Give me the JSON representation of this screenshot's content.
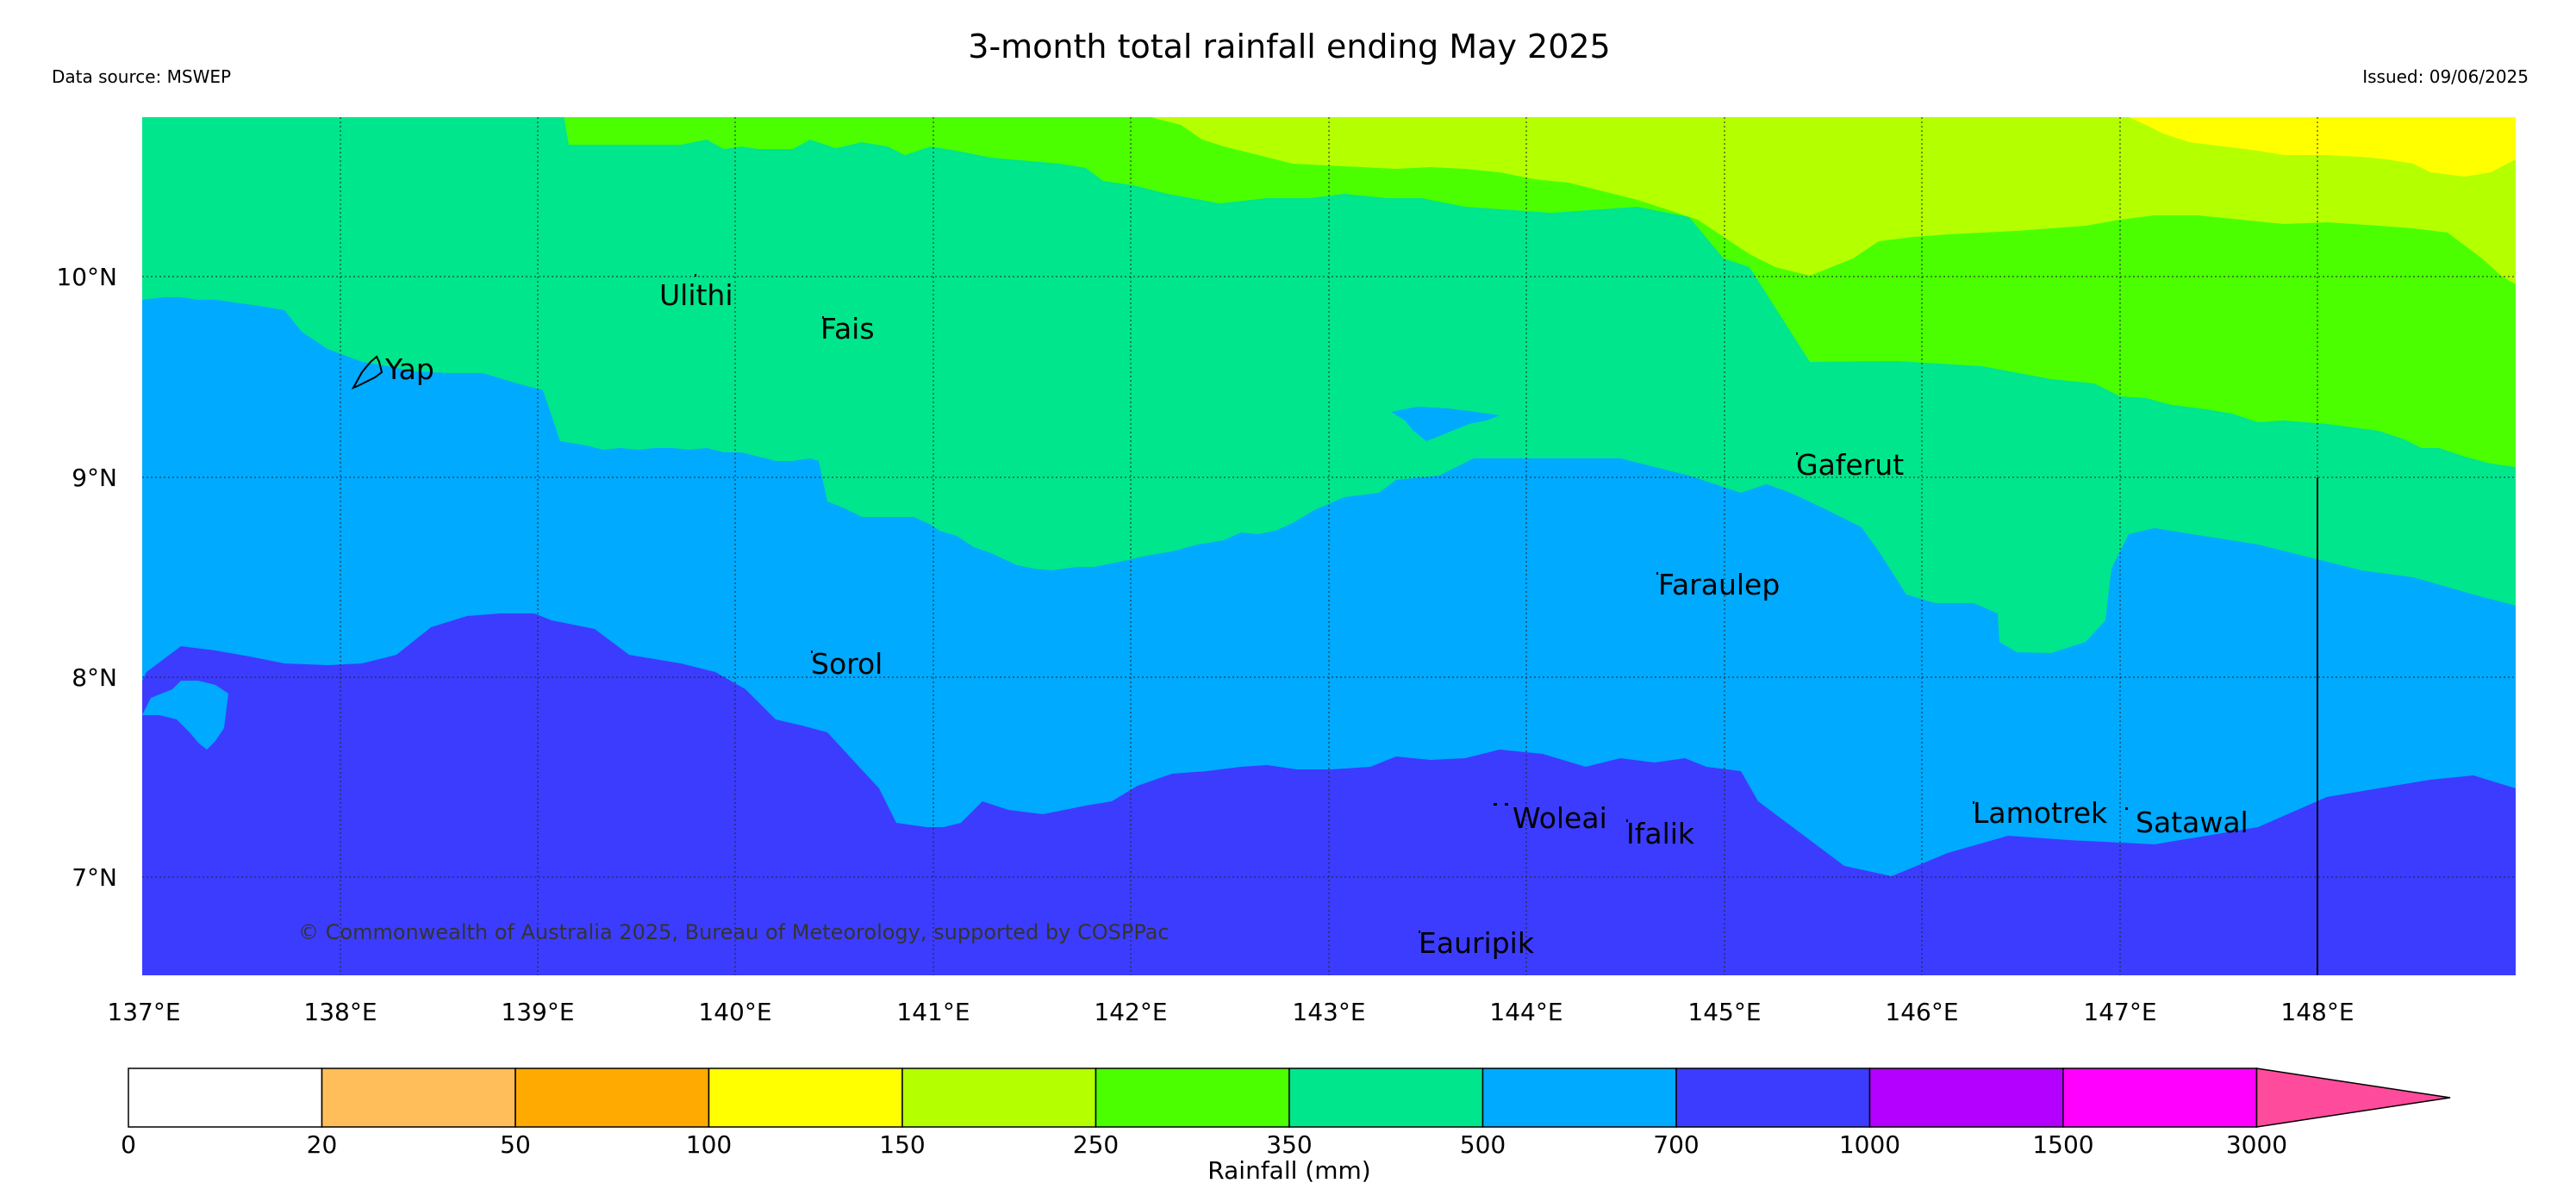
{
  "header": {
    "title": "3-month total rainfall ending May 2025",
    "source": "Data source: MSWEP",
    "issued": "Issued: 09/06/2025"
  },
  "map": {
    "lat_ticks": [
      "10°N",
      "9°N",
      "8°N",
      "7°N"
    ],
    "lon_ticks": [
      "137°E",
      "138°E",
      "139°E",
      "140°E",
      "141°E",
      "142°E",
      "143°E",
      "144°E",
      "145°E",
      "146°E",
      "147°E",
      "148°E"
    ],
    "copyright": "© Commonwealth of Australia 2025, Bureau of Meteorology, supported by COSPPac",
    "places": [
      {
        "name": "Ulithi"
      },
      {
        "name": "Fais"
      },
      {
        "name": "Yap"
      },
      {
        "name": "Gaferut"
      },
      {
        "name": "Faraulep"
      },
      {
        "name": "Sorol"
      },
      {
        "name": "Woleai"
      },
      {
        "name": "Ifalik"
      },
      {
        "name": "Lamotrek"
      },
      {
        "name": "Satawal"
      },
      {
        "name": "Eauripik"
      }
    ]
  },
  "colorbar": {
    "title": "Rainfall (mm)",
    "ticks": [
      "0",
      "20",
      "50",
      "100",
      "150",
      "250",
      "350",
      "500",
      "700",
      "1000",
      "1500",
      "3000"
    ],
    "colors": [
      "#ffffff",
      "#ffbe5a",
      "#ffaa00",
      "#ffff00",
      "#b4ff00",
      "#4bff00",
      "#00e68c",
      "#00aaff",
      "#3c3cff",
      "#b400ff",
      "#ff00ff",
      "#ff4b9b"
    ]
  }
}
